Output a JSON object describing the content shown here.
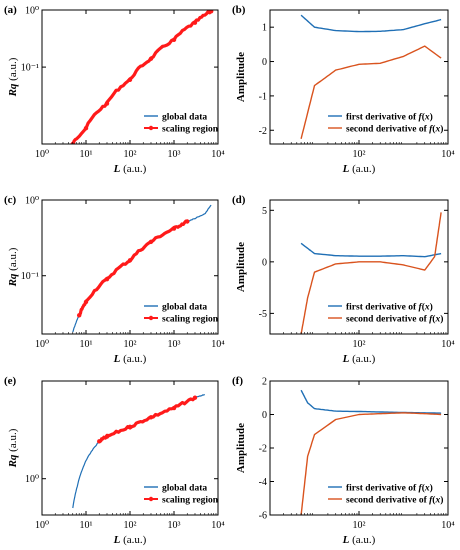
{
  "colors": {
    "global": "#1f6fb5",
    "scaling": "#ff1a1a",
    "first_derivative": "#1f6fb5",
    "second_derivative": "#d9531e",
    "axis": "#000000"
  },
  "chart_data": [
    {
      "panel": "(a)",
      "type": "line",
      "xscale": "log",
      "yscale": "log",
      "xlabel_italic": "L",
      "xlabel_unit": " (a.u.)",
      "ylabel_italic": "Rq",
      "ylabel_unit": " (a.u.)",
      "xlim": [
        1,
        10000
      ],
      "ylim": [
        0.0045,
        1.0
      ],
      "xticks": [
        1,
        10,
        100,
        1000,
        10000
      ],
      "xtick_labels": [
        "10⁰",
        "10¹",
        "10²",
        "10³",
        "10⁴"
      ],
      "yticks": [
        0.1,
        1.0
      ],
      "ytick_labels": [
        "10⁻¹",
        "10⁰"
      ],
      "legend_position": "bottom-right",
      "series": [
        {
          "name": "global data",
          "x": [
            5,
            10,
            30,
            100,
            300,
            1000,
            3000,
            7000
          ],
          "y": [
            0.0045,
            0.0085,
            0.023,
            0.06,
            0.14,
            0.3,
            0.6,
            0.95
          ]
        },
        {
          "name": "scaling region",
          "x": [
            5,
            10,
            30,
            100,
            300,
            1000,
            3000,
            7000
          ],
          "y": [
            0.0045,
            0.0085,
            0.023,
            0.06,
            0.14,
            0.3,
            0.6,
            0.95
          ]
        }
      ]
    },
    {
      "panel": "(b)",
      "type": "line",
      "xscale": "log",
      "yscale": "linear",
      "xlabel_italic": "L",
      "xlabel_unit": " (a.u.)",
      "ylabel": "Amplitude",
      "xlim": [
        1,
        10000
      ],
      "ylim": [
        -2.4,
        1.5
      ],
      "xticks": [
        100,
        10000
      ],
      "xtick_labels": [
        "10²",
        "10⁴"
      ],
      "yticks": [
        -2,
        -1,
        0,
        1
      ],
      "ytick_labels": [
        "-2",
        "-1",
        "0",
        "1"
      ],
      "legend_position": "bottom-right",
      "series": [
        {
          "name": "first derivative of f(x)",
          "x": [
            5,
            10,
            30,
            100,
            300,
            1000,
            3000,
            7000
          ],
          "y": [
            1.35,
            1.0,
            0.9,
            0.87,
            0.88,
            0.93,
            1.1,
            1.22
          ]
        },
        {
          "name": "second derivative of f(x)",
          "x": [
            5,
            10,
            30,
            100,
            300,
            1000,
            3000,
            7000
          ],
          "y": [
            -2.25,
            -0.7,
            -0.25,
            -0.08,
            -0.05,
            0.15,
            0.45,
            0.1
          ]
        }
      ]
    },
    {
      "panel": "(c)",
      "type": "line",
      "xscale": "log",
      "yscale": "log",
      "xlabel_italic": "L",
      "xlabel_unit": " (a.u.)",
      "ylabel_italic": "Rq",
      "ylabel_unit": " (a.u.)",
      "xlim": [
        1,
        10000
      ],
      "ylim": [
        0.017,
        1.0
      ],
      "xticks": [
        1,
        10,
        100,
        1000,
        10000
      ],
      "xtick_labels": [
        "10⁰",
        "10¹",
        "10²",
        "10³",
        "10⁴"
      ],
      "yticks": [
        0.1,
        1.0
      ],
      "ytick_labels": [
        "10⁻¹",
        "10⁰"
      ],
      "legend_position": "bottom-right",
      "series": [
        {
          "name": "global data",
          "x": [
            5,
            7,
            10,
            30,
            100,
            300,
            1000,
            2000,
            3000,
            5000,
            7000
          ],
          "y": [
            0.018,
            0.03,
            0.045,
            0.09,
            0.16,
            0.28,
            0.42,
            0.52,
            0.57,
            0.65,
            0.85
          ]
        },
        {
          "name": "scaling region",
          "x": [
            7,
            10,
            30,
            100,
            300,
            1000,
            2000
          ],
          "y": [
            0.03,
            0.045,
            0.09,
            0.16,
            0.28,
            0.42,
            0.52
          ]
        }
      ]
    },
    {
      "panel": "(d)",
      "type": "line",
      "xscale": "log",
      "yscale": "linear",
      "xlabel_italic": "L",
      "xlabel_unit": " (a.u.)",
      "ylabel": "Amplitude",
      "xlim": [
        1,
        10000
      ],
      "ylim": [
        -7,
        6
      ],
      "xticks": [
        100,
        10000
      ],
      "xtick_labels": [
        "10²",
        "10⁴"
      ],
      "yticks": [
        -5,
        0,
        5
      ],
      "ytick_labels": [
        "-5",
        "0",
        "5"
      ],
      "legend_position": "bottom-right",
      "series": [
        {
          "name": "first derivative of f(x)",
          "x": [
            5,
            10,
            30,
            100,
            300,
            1000,
            3000,
            7000
          ],
          "y": [
            1.8,
            0.8,
            0.6,
            0.55,
            0.55,
            0.6,
            0.5,
            0.8
          ]
        },
        {
          "name": "second derivative of f(x)",
          "x": [
            5,
            7,
            10,
            30,
            100,
            300,
            1000,
            3000,
            5000,
            7000
          ],
          "y": [
            -7.0,
            -3.5,
            -1.0,
            -0.2,
            0.0,
            0.0,
            -0.3,
            -0.8,
            0.5,
            4.8
          ]
        }
      ]
    },
    {
      "panel": "(e)",
      "type": "line",
      "xscale": "log",
      "yscale": "log",
      "xlabel_italic": "L",
      "xlabel_unit": " (a.u.)",
      "ylabel_italic": "Rq",
      "ylabel_unit": " (a.u.)",
      "xlim": [
        1,
        10000
      ],
      "ylim": [
        0.55,
        5.0
      ],
      "xticks": [
        1,
        10,
        100,
        1000,
        10000
      ],
      "xtick_labels": [
        "10⁰",
        "10¹",
        "10²",
        "10³",
        "10⁴"
      ],
      "yticks": [
        1.0
      ],
      "ytick_labels": [
        "10⁰"
      ],
      "legend_position": "bottom-right",
      "series": [
        {
          "name": "global data",
          "x": [
            5,
            7,
            10,
            15,
            20,
            30,
            100,
            300,
            1000,
            3000,
            5000
          ],
          "y": [
            0.62,
            1.0,
            1.35,
            1.65,
            1.85,
            2.0,
            2.35,
            2.75,
            3.2,
            3.8,
            4.0
          ]
        },
        {
          "name": "scaling region",
          "x": [
            20,
            30,
            100,
            300,
            1000,
            3000
          ],
          "y": [
            1.85,
            2.0,
            2.35,
            2.75,
            3.2,
            3.8
          ]
        }
      ]
    },
    {
      "panel": "(f)",
      "type": "line",
      "xscale": "log",
      "yscale": "linear",
      "xlabel_italic": "L",
      "xlabel_unit": " (a.u.)",
      "ylabel": "Amplitude",
      "xlim": [
        1,
        10000
      ],
      "ylim": [
        -6,
        2
      ],
      "xticks": [
        100,
        10000
      ],
      "xtick_labels": [
        "10²",
        "10⁴"
      ],
      "yticks": [
        -6,
        -4,
        -2,
        0,
        2
      ],
      "ytick_labels": [
        "-6",
        "-4",
        "-2",
        "0",
        "2"
      ],
      "legend_position": "bottom-right",
      "series": [
        {
          "name": "first derivative of f(x)",
          "x": [
            5,
            7,
            10,
            30,
            100,
            300,
            1000,
            3000,
            7000
          ],
          "y": [
            1.45,
            0.7,
            0.35,
            0.2,
            0.18,
            0.15,
            0.12,
            0.1,
            0.08
          ]
        },
        {
          "name": "second derivative of f(x)",
          "x": [
            5,
            7,
            10,
            30,
            100,
            300,
            1000,
            3000,
            7000
          ],
          "y": [
            -6.0,
            -2.5,
            -1.2,
            -0.3,
            0.0,
            0.05,
            0.1,
            0.05,
            0.0
          ]
        }
      ]
    }
  ]
}
